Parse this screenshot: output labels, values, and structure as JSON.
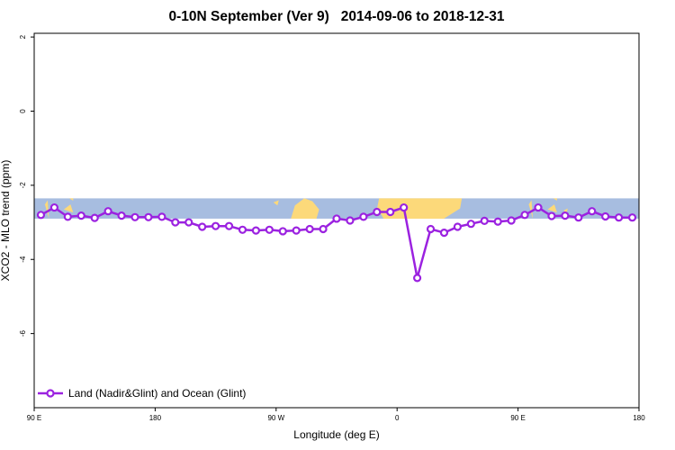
{
  "chart_data": {
    "type": "line",
    "title": "0-10N September (Ver 9)   2014-09-06 to 2018-12-31",
    "xlabel": "Longitude (deg E)",
    "ylabel": "XCO2 - MLO trend (ppm)",
    "xlim": [
      90,
      540
    ],
    "ylim": [
      -8,
      2.1
    ],
    "x_ticks": [
      {
        "value": 90,
        "label": "90 E"
      },
      {
        "value": 180,
        "label": "180"
      },
      {
        "value": 270,
        "label": "90 W"
      },
      {
        "value": 360,
        "label": "0"
      },
      {
        "value": 450,
        "label": "90 E"
      },
      {
        "value": 540,
        "label": "180"
      }
    ],
    "y_ticks": [
      {
        "value": 2,
        "label": "2"
      },
      {
        "value": 0,
        "label": "0"
      },
      {
        "value": -2,
        "label": "-2"
      },
      {
        "value": -4,
        "label": "-4"
      },
      {
        "value": -6,
        "label": "-6"
      }
    ],
    "grid": false,
    "legend": {
      "position": "bottom-left",
      "entries": [
        "Land (Nadir&Glint) and Ocean (Glint)"
      ]
    },
    "background_map": {
      "lat_band": "0-10N",
      "y_range": [
        -2.9,
        -2.35
      ],
      "ocean_color": "#a7bde0",
      "land_color": "#fcd97a"
    },
    "series": [
      {
        "name": "Land (Nadir&Glint) and Ocean (Glint)",
        "color": "#9b22e0",
        "x": [
          95,
          105,
          115,
          125,
          135,
          145,
          155,
          165,
          175,
          185,
          195,
          205,
          215,
          225,
          235,
          245,
          255,
          265,
          275,
          285,
          295,
          305,
          315,
          325,
          335,
          345,
          355,
          365,
          375,
          385,
          395,
          405,
          415,
          425,
          435,
          445,
          455,
          465,
          475,
          485,
          495,
          505,
          515,
          525,
          535
        ],
        "y": [
          -2.8,
          -2.6,
          -2.85,
          -2.82,
          -2.88,
          -2.7,
          -2.82,
          -2.86,
          -2.86,
          -2.85,
          -3.0,
          -3.0,
          -3.12,
          -3.1,
          -3.1,
          -3.2,
          -3.22,
          -3.2,
          -3.24,
          -3.22,
          -3.18,
          -3.18,
          -2.9,
          -2.95,
          -2.85,
          -2.72,
          -2.72,
          -2.6,
          -4.5,
          -3.18,
          -3.28,
          -3.12,
          -3.04,
          -2.96,
          -2.98,
          -2.95,
          -2.8,
          -2.6,
          -2.83,
          -2.82,
          -2.87,
          -2.7,
          -2.84,
          -2.87,
          -2.87
        ]
      }
    ]
  }
}
